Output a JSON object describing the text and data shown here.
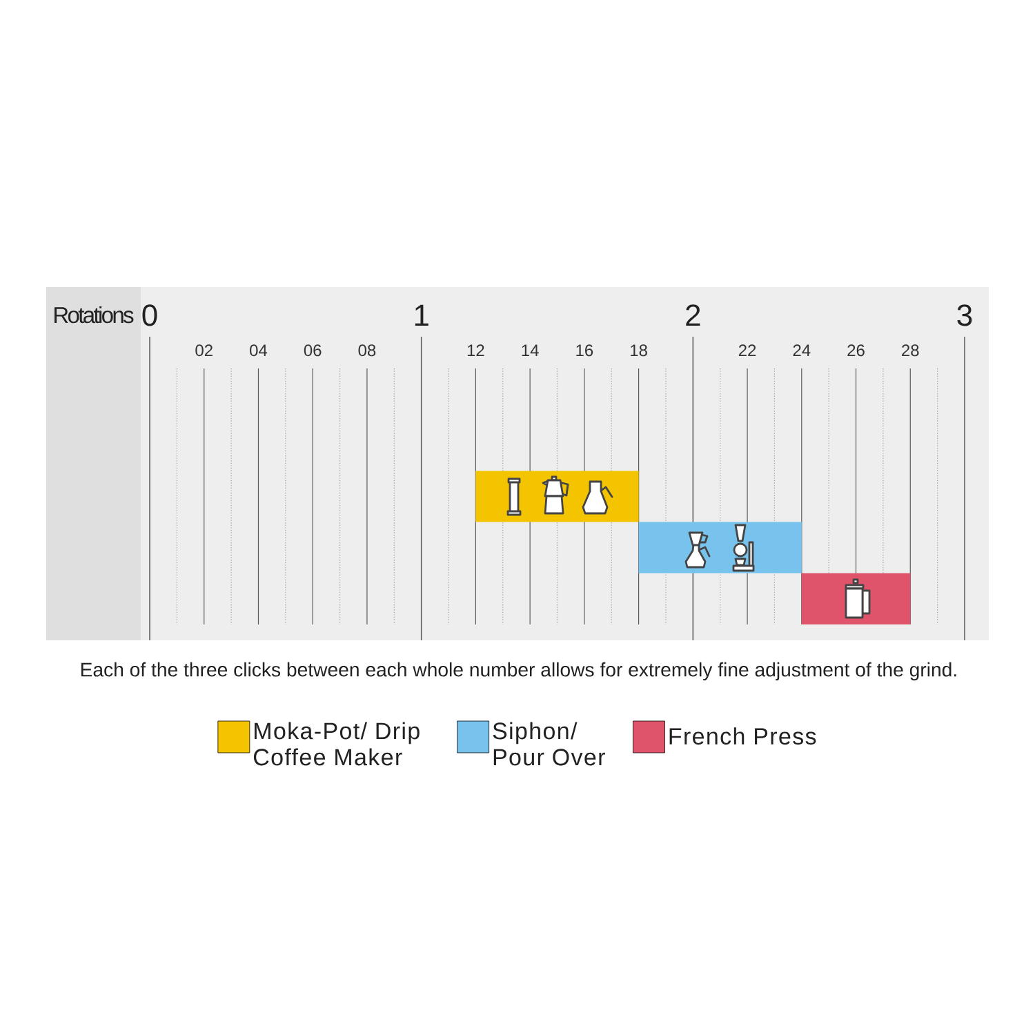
{
  "chart_data": {
    "type": "bar",
    "orientation": "horizontal",
    "categories": [
      null,
      null,
      null,
      null,
      null
    ],
    "series": [
      {
        "name": "Moka-Pot/ Drip Coffee Maker",
        "color": "#f5c400",
        "values": [
          null,
          null,
          6,
          null,
          null
        ],
        "base": [
          null,
          null,
          12,
          null,
          null
        ]
      },
      {
        "name": "Siphon/ Pour Over",
        "color": "#78c3ee",
        "values": [
          null,
          null,
          null,
          6,
          null
        ],
        "base": [
          null,
          null,
          null,
          18,
          null
        ]
      },
      {
        "name": "French Press",
        "color": "#e0546b",
        "values": [
          null,
          null,
          null,
          null,
          4
        ],
        "base": [
          null,
          null,
          null,
          null,
          24
        ]
      }
    ],
    "xlim": [
      0,
      30
    ],
    "xticks": [
      {
        "value": 1,
        "label": null
      },
      {
        "value": 2,
        "label": "02"
      },
      {
        "value": 3,
        "label": null
      },
      {
        "value": 4,
        "label": "04"
      },
      {
        "value": 5,
        "label": null
      },
      {
        "value": 6,
        "label": "06"
      },
      {
        "value": 7,
        "label": null
      },
      {
        "value": 8,
        "label": "08"
      },
      {
        "value": 9,
        "label": null
      },
      {
        "value": 11,
        "label": null
      },
      {
        "value": 12,
        "label": "12"
      },
      {
        "value": 13,
        "label": null
      },
      {
        "value": 14,
        "label": "14"
      },
      {
        "value": 15,
        "label": null
      },
      {
        "value": 16,
        "label": "16"
      },
      {
        "value": 17,
        "label": null
      },
      {
        "value": 18,
        "label": "18"
      },
      {
        "value": 19,
        "label": null
      },
      {
        "value": 21,
        "label": null
      },
      {
        "value": 22,
        "label": "22"
      },
      {
        "value": 23,
        "label": null
      },
      {
        "value": 24,
        "label": "24"
      },
      {
        "value": 25,
        "label": null
      },
      {
        "value": 26,
        "label": "26"
      },
      {
        "value": 27,
        "label": null
      },
      {
        "value": 28,
        "label": "28"
      },
      {
        "value": 29,
        "label": null
      }
    ],
    "x2lim": [
      0,
      3
    ],
    "x2ticks": [
      0,
      1,
      2,
      3
    ],
    "x2label": "Rotations",
    "grid": "x",
    "legend": "bottom",
    "annotations": [
      "Each of the three clicks between each whole number allows for extremely fine adjustment of the grind."
    ]
  }
}
